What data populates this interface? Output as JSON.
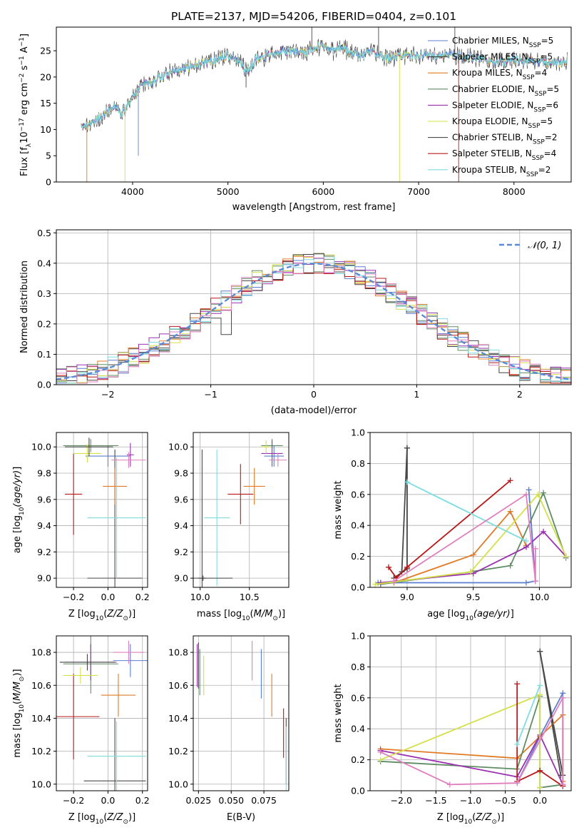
{
  "figure": {
    "title": "PLATE=2137, MJD=54206, FIBERID=0404, z=0.101"
  },
  "legend_models": [
    {
      "label": "Chabrier MILES, N",
      "sub": "SSP",
      "tail": "=5",
      "color": "#5b7fd0"
    },
    {
      "label": "Salpeter MILES, N",
      "sub": "SSP",
      "tail": "=5",
      "color": "#444444"
    },
    {
      "label": "Kroupa MILES, N",
      "sub": "SSP",
      "tail": "=4",
      "color": "#e07b27"
    },
    {
      "label": "Chabrier ELODIE, N",
      "sub": "SSP",
      "tail": "=5",
      "color": "#5f8d63"
    },
    {
      "label": "Salpeter ELODIE, N",
      "sub": "SSP",
      "tail": "=6",
      "color": "#9b30b0"
    },
    {
      "label": "Kroupa ELODIE, N",
      "sub": "SSP",
      "tail": "=5",
      "color": "#d4e04a"
    },
    {
      "label": "Chabrier STELIB, N",
      "sub": "SSP",
      "tail": "=2",
      "color": "#4a4a4a"
    },
    {
      "label": "Salpeter STELIB, N",
      "sub": "SSP",
      "tail": "=4",
      "color": "#b81818"
    },
    {
      "label": "Kroupa STELIB, N",
      "sub": "SSP",
      "tail": "=2",
      "color": "#7fdde0"
    }
  ],
  "pink": "#e07fbf",
  "chart_data": [
    {
      "id": "spectrum",
      "type": "line",
      "xlabel": "wavelength [Angstrom, rest frame]",
      "ylabel_main": "Flux [f",
      "ylabel_sub": "λ",
      "ylabel_mid": "10",
      "ylabel_sup": "−17",
      "ylabel_tail": " erg cm",
      "ylabel_sup2": "−2",
      "ylabel_tail2": " s",
      "ylabel_sup3": "−1",
      "ylabel_tail3": " A",
      "ylabel_sup4": "−1",
      "ylabel_end": "]",
      "xlim": [
        3200,
        8600
      ],
      "ylim": [
        0,
        29.5
      ],
      "xticks": [
        4000,
        5000,
        6000,
        7000,
        8000
      ],
      "yticks": [
        0,
        5,
        10,
        15,
        20,
        25
      ],
      "envelope": [
        [
          3460,
          10.5
        ],
        [
          3520,
          10.8
        ],
        [
          3600,
          11.5
        ],
        [
          3700,
          13
        ],
        [
          3800,
          14.5
        ],
        [
          3900,
          13
        ],
        [
          4000,
          16.5
        ],
        [
          4100,
          18.5
        ],
        [
          4200,
          19
        ],
        [
          4300,
          20
        ],
        [
          4400,
          21
        ],
        [
          4500,
          21.5
        ],
        [
          4600,
          22
        ],
        [
          4700,
          22.5
        ],
        [
          4800,
          23
        ],
        [
          4900,
          23.5
        ],
        [
          5000,
          24
        ],
        [
          5100,
          23.5
        ],
        [
          5200,
          21
        ],
        [
          5300,
          23.5
        ],
        [
          5400,
          24
        ],
        [
          5500,
          24.5
        ],
        [
          5600,
          25
        ],
        [
          5700,
          25
        ],
        [
          5800,
          24.5
        ],
        [
          5900,
          25.5
        ],
        [
          6000,
          26
        ],
        [
          6100,
          25
        ],
        [
          6200,
          25.5
        ],
        [
          6300,
          24.5
        ],
        [
          6400,
          24
        ],
        [
          6500,
          25
        ],
        [
          6600,
          24
        ],
        [
          6700,
          23.5
        ],
        [
          6800,
          24
        ],
        [
          6900,
          24
        ],
        [
          7000,
          24
        ],
        [
          7100,
          24.5
        ],
        [
          7200,
          24
        ],
        [
          7300,
          24.5
        ],
        [
          7400,
          24
        ],
        [
          7500,
          24
        ],
        [
          7600,
          23.5
        ],
        [
          7700,
          23.5
        ],
        [
          7800,
          23
        ],
        [
          7900,
          23
        ],
        [
          8000,
          23.5
        ],
        [
          8100,
          23
        ],
        [
          8200,
          23
        ],
        [
          8300,
          23
        ],
        [
          8400,
          23
        ],
        [
          8500,
          22.5
        ],
        [
          8560,
          23.5
        ]
      ]
    },
    {
      "id": "residuals",
      "type": "line",
      "xlabel": "(data-model)/error",
      "ylabel": "Normed distribution",
      "legend": "N(0,1)",
      "xlim": [
        -2.5,
        2.5
      ],
      "ylim": [
        0,
        0.51
      ],
      "xticks": [
        -2,
        -1,
        0,
        1,
        2
      ],
      "yticks": [
        0.0,
        0.1,
        0.2,
        0.3,
        0.4,
        0.5
      ],
      "bin_width": 0.1,
      "bins_start": -2.5
    },
    {
      "id": "Z-age",
      "type": "scatter",
      "xlabel": "Z [log",
      "xlabel_sub": "10",
      "xlabel_tail": "(Z/Z",
      "xlabel_sub2": "⊙",
      "xlabel_end": ")]",
      "ylabel": "age  [log",
      "ylabel_sub": "10",
      "ylabel_tail": "(age/yr)]",
      "xlim": [
        -0.3,
        0.23
      ],
      "ylim": [
        8.93,
        10.11
      ],
      "xticks": [
        -0.2,
        0.0,
        0.2
      ],
      "xticklabels": [
        "−0.2",
        "0.0",
        "0.2"
      ],
      "yticks": [
        9.0,
        9.2,
        9.4,
        9.6,
        9.8,
        10.0
      ],
      "points": [
        {
          "x": 0.0,
          "y": 9.93,
          "xe": 0.13,
          "ye": 0.08,
          "c": 0
        },
        {
          "x": 0.04,
          "y": 9.0,
          "xe": 0.16,
          "ye": 0.98,
          "c": 6
        },
        {
          "x": -0.2,
          "y": 9.64,
          "xe": 0.05,
          "ye": 0.31,
          "c": 7
        },
        {
          "x": 0.04,
          "y": 9.7,
          "xe": 0.07,
          "ye": 0.14,
          "c": 2
        },
        {
          "x": -0.1,
          "y": 10.01,
          "xe": 0.16,
          "ye": 0.05,
          "c": 3
        },
        {
          "x": 0.13,
          "y": 9.94,
          "xe": 0.02,
          "ye": 0.09,
          "c": 4
        },
        {
          "x": -0.12,
          "y": 9.95,
          "xe": 0.08,
          "ye": 0.07,
          "c": 5
        },
        {
          "x": 0.05,
          "y": 9.46,
          "xe": 0.17,
          "ye": 0.46,
          "c": 8
        },
        {
          "x": -0.11,
          "y": 10.0,
          "xe": 0.14,
          "ye": 0.07,
          "c": 1
        },
        {
          "x": 0.12,
          "y": 9.9,
          "xe": 0.1,
          "ye": 0.06,
          "c": 9
        }
      ]
    },
    {
      "id": "mass-age",
      "type": "scatter",
      "xlabel": "mass [log",
      "xlabel_sub": "10",
      "xlabel_tail": "(M/M",
      "xlabel_sub2": "⊙",
      "xlabel_end": ")]",
      "xlim": [
        9.93,
        10.9
      ],
      "ylim": [
        8.93,
        10.11
      ],
      "xticks": [
        10.0,
        10.5
      ],
      "xticklabels": [
        "10.0",
        "10.5"
      ],
      "yticks": [
        9.0,
        9.2,
        9.4,
        9.6,
        9.8,
        10.0
      ],
      "points": [
        {
          "x": 10.75,
          "y": 9.93,
          "xe": 0.1,
          "ye": 0.08,
          "c": 0
        },
        {
          "x": 10.02,
          "y": 9.0,
          "xe": 0.04,
          "ye": 0.98,
          "c": 6
        },
        {
          "x": 10.41,
          "y": 9.64,
          "xe": 0.13,
          "ye": 0.23,
          "c": 7
        },
        {
          "x": 10.55,
          "y": 9.7,
          "xe": 0.11,
          "ye": 0.14,
          "c": 2
        },
        {
          "x": 10.73,
          "y": 10.01,
          "xe": 0.11,
          "ye": 0.05,
          "c": 3
        },
        {
          "x": 10.73,
          "y": 9.95,
          "xe": 0.11,
          "ye": 0.1,
          "c": 4
        },
        {
          "x": 10.67,
          "y": 10.0,
          "xe": 0.05,
          "ye": 0.05,
          "c": 5
        },
        {
          "x": 10.17,
          "y": 9.46,
          "xe": 0.13,
          "ye": 0.52,
          "c": 8
        },
        {
          "x": 10.03,
          "y": 9.0,
          "xe": 0.3,
          "ye": 0.02,
          "c": 1
        },
        {
          "x": 10.79,
          "y": 9.9,
          "xe": 0.09,
          "ye": 0.05,
          "c": 9
        }
      ]
    },
    {
      "id": "age-weight",
      "type": "line",
      "xlabel": "age  [log",
      "xlabel_sub": "10",
      "xlabel_tail": "(age/yr)]",
      "ylabel": "mass weight",
      "xlim": [
        8.72,
        10.24
      ],
      "ylim": [
        0,
        1.0
      ],
      "xticks": [
        9.0,
        9.5,
        10.0
      ],
      "xticklabels": [
        "9.0",
        "9.5",
        "10.0"
      ],
      "yticks": [
        0.0,
        0.2,
        0.4,
        0.6,
        0.8,
        1.0
      ],
      "series": [
        {
          "c": 0,
          "x": [
            8.78,
            9.9,
            9.97,
            9.92
          ],
          "y": [
            0.03,
            0.03,
            0.04,
            0.63
          ]
        },
        {
          "c": 1,
          "x": [
            8.9,
            9.0,
            9.0
          ],
          "y": [
            0.06,
            0.12,
            0.9
          ]
        },
        {
          "c": 2,
          "x": [
            8.9,
            9.5,
            9.78,
            9.9
          ],
          "y": [
            0.03,
            0.21,
            0.49,
            0.27
          ]
        },
        {
          "c": 3,
          "x": [
            8.8,
            9.48,
            9.78,
            10.03,
            10.2
          ],
          "y": [
            0.02,
            0.1,
            0.14,
            0.61,
            0.19
          ]
        },
        {
          "c": 4,
          "x": [
            8.8,
            9.5,
            9.9,
            10.03,
            10.2
          ],
          "y": [
            0.03,
            0.09,
            0.26,
            0.36,
            0.2
          ]
        },
        {
          "c": 5,
          "x": [
            8.76,
            9.48,
            9.99,
            10.2
          ],
          "y": [
            0.02,
            0.1,
            0.6,
            0.2
          ]
        },
        {
          "c": 6,
          "x": [
            8.96,
            9.0
          ],
          "y": [
            0.1,
            0.9
          ]
        },
        {
          "c": 7,
          "x": [
            8.86,
            8.92,
            9.0,
            9.78
          ],
          "y": [
            0.13,
            0.06,
            0.13,
            0.69
          ]
        },
        {
          "c": 8,
          "x": [
            9.0,
            9.9
          ],
          "y": [
            0.68,
            0.3
          ]
        },
        {
          "c": 9,
          "x": [
            8.9,
            9.9,
            9.97,
            9.97
          ],
          "y": [
            0.04,
            0.6,
            0.04,
            0.25
          ]
        }
      ]
    },
    {
      "id": "Z-mass",
      "type": "scatter",
      "xlabel": "Z [log",
      "xlabel_sub": "10",
      "xlabel_tail": "(Z/Z",
      "xlabel_sub2": "⊙",
      "xlabel_end": ")]",
      "ylabel": "mass [log",
      "ylabel_sub": "10",
      "ylabel_tail": "(M/M",
      "ylabel_sub2": "⊙",
      "ylabel_end": ")]",
      "xlim": [
        -0.3,
        0.23
      ],
      "ylim": [
        9.96,
        10.9
      ],
      "xticks": [
        -0.2,
        0.0,
        0.2
      ],
      "xticklabels": [
        "−0.2",
        "0.0",
        "0.2"
      ],
      "yticks": [
        10.0,
        10.2,
        10.4,
        10.6,
        10.8
      ],
      "points": [
        {
          "x": 0.13,
          "y": 10.75,
          "xe": 0.1,
          "ye": 0.1,
          "c": 0
        },
        {
          "x": 0.04,
          "y": 10.02,
          "xe": 0.18,
          "ye": 0.38,
          "c": 6
        },
        {
          "x": -0.2,
          "y": 10.41,
          "xe": 0.15,
          "ye": 0.26,
          "c": 7
        },
        {
          "x": 0.06,
          "y": 10.54,
          "xe": 0.1,
          "ye": 0.13,
          "c": 2
        },
        {
          "x": -0.1,
          "y": 10.73,
          "xe": 0.16,
          "ye": 0.18,
          "c": 3
        },
        {
          "x": -0.1,
          "y": 10.74,
          "xe": 0.15,
          "ye": 0.11,
          "c": 4
        },
        {
          "x": -0.16,
          "y": 10.66,
          "xe": 0.1,
          "ye": 0.05,
          "c": 5
        },
        {
          "x": 0.05,
          "y": 10.17,
          "xe": 0.17,
          "ye": 0.21,
          "c": 8
        },
        {
          "x": -0.12,
          "y": 10.74,
          "xe": 0.16,
          "ye": 0.05,
          "c": 1
        },
        {
          "x": 0.12,
          "y": 10.8,
          "xe": 0.09,
          "ye": 0.07,
          "c": 9
        }
      ]
    },
    {
      "id": "ebv-mass",
      "type": "scatter",
      "xlabel": "E(B-V)",
      "xlim": [
        0.021,
        0.094
      ],
      "ylim": [
        9.96,
        10.9
      ],
      "xticks": [
        0.025,
        0.05,
        0.075
      ],
      "xticklabels": [
        "0.025",
        "0.050",
        "0.075"
      ],
      "yticks": [
        10.0,
        10.2,
        10.4,
        10.6,
        10.8
      ],
      "points": [
        {
          "x": 0.073,
          "y": 10.67,
          "ye": 0.15,
          "c": 0
        },
        {
          "x": 0.092,
          "y": 10.2,
          "ye": 0.2,
          "c": 6
        },
        {
          "x": 0.09,
          "y": 10.31,
          "ye": 0.15,
          "c": 7
        },
        {
          "x": 0.081,
          "y": 10.54,
          "ye": 0.13,
          "c": 2
        },
        {
          "x": 0.026,
          "y": 10.68,
          "ye": 0.14,
          "c": 3
        },
        {
          "x": 0.024,
          "y": 10.72,
          "ye": 0.13,
          "c": 4
        },
        {
          "x": 0.029,
          "y": 10.66,
          "ye": 0.12,
          "c": 5
        },
        {
          "x": 0.092,
          "y": 10.15,
          "ye": 0.2,
          "c": 8
        },
        {
          "x": 0.025,
          "y": 10.72,
          "ye": 0.14,
          "c": 1
        },
        {
          "x": 0.066,
          "y": 10.75,
          "ye": 0.12,
          "c": 9
        }
      ]
    },
    {
      "id": "Z-weight",
      "type": "line",
      "xlabel": "Z [log",
      "xlabel_sub": "10",
      "xlabel_tail": "(Z/Z",
      "xlabel_sub2": "⊙",
      "xlabel_end": ")]",
      "ylabel": "mass weight",
      "xlim": [
        -2.45,
        0.45
      ],
      "ylim": [
        0,
        1.0
      ],
      "xticks": [
        -2.0,
        -1.5,
        -1.0,
        -0.5,
        0.0
      ],
      "xticklabels": [
        "−2.0",
        "−1.5",
        "−1.0",
        "−0.5",
        "0.0"
      ],
      "yticks": [
        0.0,
        0.2,
        0.4,
        0.6,
        0.8,
        1.0
      ],
      "series": [
        {
          "c": 0,
          "x": [
            -0.33,
            0.0,
            0.33,
            0.33
          ],
          "y": [
            0.05,
            0.35,
            0.63,
            0.03
          ]
        },
        {
          "c": 1,
          "x": [
            0.0,
            0.33
          ],
          "y": [
            0.9,
            0.1
          ]
        },
        {
          "c": 2,
          "x": [
            -2.3,
            -0.33,
            0.0,
            0.33,
            0.33
          ],
          "y": [
            0.27,
            0.21,
            0.35,
            0.49,
            0.06
          ]
        },
        {
          "c": 3,
          "x": [
            -2.3,
            -0.33,
            0.0,
            0.0,
            0.33
          ],
          "y": [
            0.19,
            0.14,
            0.61,
            0.02,
            0.04
          ]
        },
        {
          "c": 4,
          "x": [
            -2.3,
            -0.33,
            0.0,
            0.33
          ],
          "y": [
            0.26,
            0.09,
            0.36,
            0.04
          ]
        },
        {
          "c": 5,
          "x": [
            -2.3,
            0.0,
            0.0
          ],
          "y": [
            0.2,
            0.62,
            0.02
          ]
        },
        {
          "c": 6,
          "x": [
            0.0,
            0.3
          ],
          "y": [
            0.9,
            0.1
          ]
        },
        {
          "c": 7,
          "x": [
            -0.33,
            -0.33,
            0.0,
            0.33
          ],
          "y": [
            0.69,
            0.06,
            0.13,
            0.03
          ]
        },
        {
          "c": 8,
          "x": [
            -0.33,
            0.0
          ],
          "y": [
            0.3,
            0.68
          ]
        },
        {
          "c": 9,
          "x": [
            -2.3,
            -1.3,
            -0.33,
            0.33,
            0.33
          ],
          "y": [
            0.25,
            0.04,
            0.05,
            0.6,
            0.04
          ]
        }
      ]
    }
  ]
}
